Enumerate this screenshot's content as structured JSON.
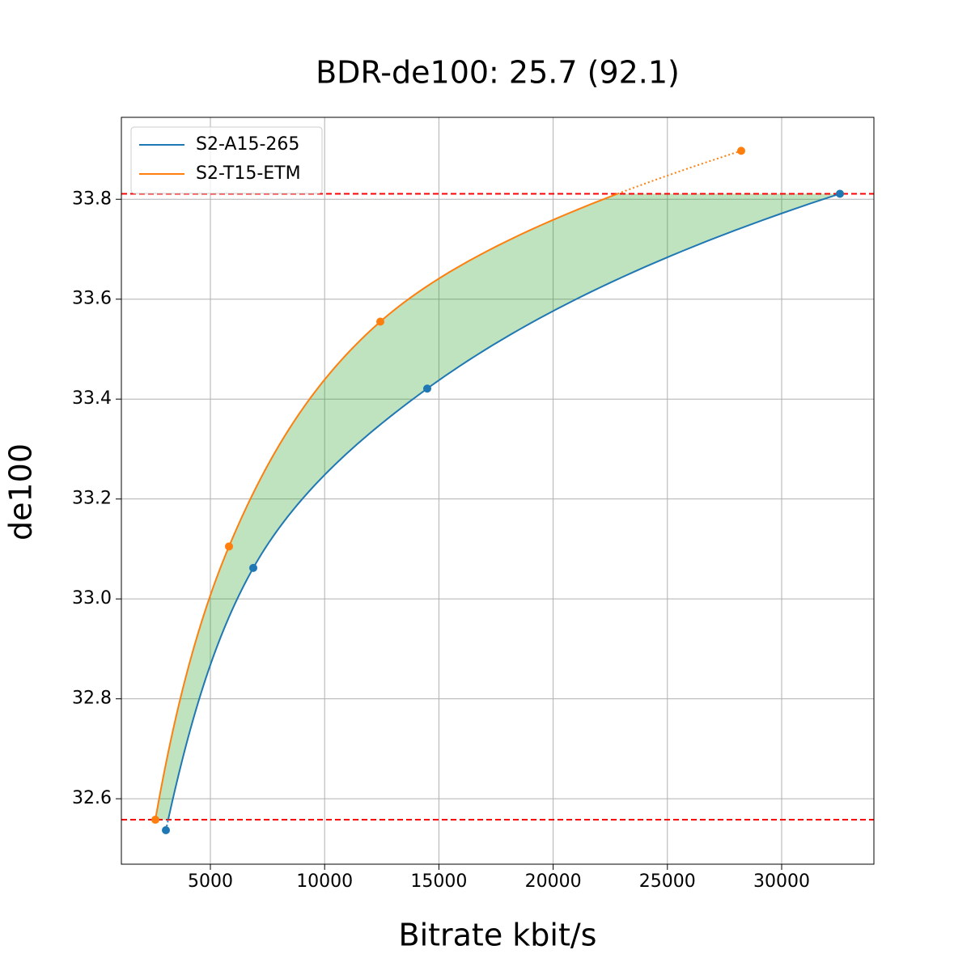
{
  "chart_data": {
    "type": "line",
    "title": "BDR-de100: 25.7 (92.1)",
    "x_label": "Bitrate kbit/s",
    "y_label": "de100",
    "series": [
      {
        "name": "S2-A15-265",
        "color": "#1f77b4",
        "x": [
          3053,
          6877,
          14490,
          32550
        ],
        "values": [
          32.537,
          33.062,
          33.421,
          33.811
        ]
      },
      {
        "name": "S2-T15-ETM",
        "color": "#ff7f0e",
        "x": [
          2592,
          5815,
          12436,
          28230
        ],
        "values": [
          32.558,
          33.105,
          33.555,
          33.897
        ]
      }
    ],
    "reference_lines": [
      33.811,
      32.558
    ],
    "reference_color": "#ff0000",
    "fill_color": "#2ca02c",
    "xlim": [
      1105,
      34037
    ],
    "ylim": [
      32.469,
      33.964
    ],
    "xticks": [
      5000,
      10000,
      15000,
      20000,
      25000,
      30000
    ],
    "yticks": [
      32.6,
      32.8,
      {
        "value": 33,
        "label": "33.0"
      },
      33.2,
      33.4,
      33.6,
      33.8
    ],
    "grid": true,
    "legend": "upper left"
  }
}
